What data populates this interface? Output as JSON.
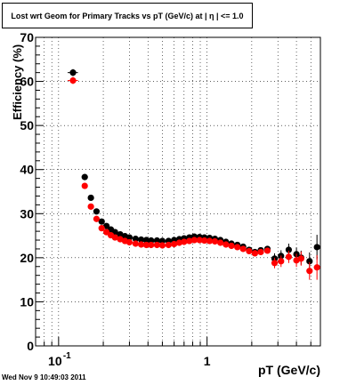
{
  "chart_data": {
    "type": "scatter",
    "title": "Lost wrt Geom for Primary Tracks vs pT (GeV/c) at |  η | <= 1.0",
    "xlabel": "pT (GeV/c)",
    "ylabel": "Efficiency (%)",
    "xscale": "log",
    "xlim": [
      0.07,
      5.8
    ],
    "ylim": [
      0,
      70
    ],
    "grid": true,
    "y_ticks": [
      "0",
      "10",
      "20",
      "30",
      "40",
      "50",
      "60",
      "70"
    ],
    "x_ticks": [
      {
        "base": "10",
        "exp": "-1",
        "value": 0.1
      },
      {
        "base": "1",
        "exp": "",
        "value": 1
      }
    ],
    "series": [
      {
        "color": "#000000",
        "points": [
          {
            "x": 0.125,
            "y": 62.0,
            "xerr": 0.01,
            "yerr": 0.8
          },
          {
            "x": 0.15,
            "y": 38.3,
            "yerr": 0.6
          },
          {
            "x": 0.165,
            "y": 33.6,
            "yerr": 0.5
          },
          {
            "x": 0.18,
            "y": 30.5
          },
          {
            "x": 0.195,
            "y": 28.2
          },
          {
            "x": 0.21,
            "y": 27.2
          },
          {
            "x": 0.225,
            "y": 26.4
          },
          {
            "x": 0.24,
            "y": 25.8
          },
          {
            "x": 0.26,
            "y": 25.3
          },
          {
            "x": 0.28,
            "y": 24.9
          },
          {
            "x": 0.3,
            "y": 24.6
          },
          {
            "x": 0.33,
            "y": 24.3
          },
          {
            "x": 0.36,
            "y": 24.1
          },
          {
            "x": 0.39,
            "y": 24.0
          },
          {
            "x": 0.42,
            "y": 23.9
          },
          {
            "x": 0.46,
            "y": 23.9
          },
          {
            "x": 0.5,
            "y": 23.8
          },
          {
            "x": 0.55,
            "y": 23.8
          },
          {
            "x": 0.6,
            "y": 24.0
          },
          {
            "x": 0.65,
            "y": 24.2
          },
          {
            "x": 0.7,
            "y": 24.4
          },
          {
            "x": 0.76,
            "y": 24.6
          },
          {
            "x": 0.82,
            "y": 24.8
          },
          {
            "x": 0.89,
            "y": 24.7
          },
          {
            "x": 0.96,
            "y": 24.6
          },
          {
            "x": 1.04,
            "y": 24.5
          },
          {
            "x": 1.13,
            "y": 24.3
          },
          {
            "x": 1.23,
            "y": 24.0
          },
          {
            "x": 1.34,
            "y": 23.6
          },
          {
            "x": 1.46,
            "y": 23.2
          },
          {
            "x": 1.6,
            "y": 22.9
          },
          {
            "x": 1.75,
            "y": 22.5
          },
          {
            "x": 1.92,
            "y": 21.8
          },
          {
            "x": 2.1,
            "y": 21.3
          },
          {
            "x": 2.3,
            "y": 21.7
          },
          {
            "x": 2.55,
            "y": 22.0
          },
          {
            "x": 2.85,
            "y": 19.8,
            "yerr": 1.2
          },
          {
            "x": 3.15,
            "y": 20.4,
            "yerr": 1.3
          },
          {
            "x": 3.55,
            "y": 21.8,
            "yerr": 1.4
          },
          {
            "x": 4.0,
            "y": 20.8,
            "yerr": 1.5
          },
          {
            "x": 4.3,
            "y": 20.0,
            "yerr": 1.6
          },
          {
            "x": 4.9,
            "y": 19.2,
            "yerr": 2.0
          },
          {
            "x": 5.5,
            "y": 22.4,
            "yerr": 2.8
          }
        ]
      },
      {
        "color": "#ff0000",
        "points": [
          {
            "x": 0.125,
            "y": 60.2,
            "xerr": 0.01,
            "yerr": 0.8
          },
          {
            "x": 0.15,
            "y": 36.3,
            "yerr": 0.6
          },
          {
            "x": 0.165,
            "y": 31.6,
            "yerr": 0.5
          },
          {
            "x": 0.18,
            "y": 28.8
          },
          {
            "x": 0.195,
            "y": 26.7
          },
          {
            "x": 0.21,
            "y": 25.8
          },
          {
            "x": 0.225,
            "y": 25.1
          },
          {
            "x": 0.24,
            "y": 24.6
          },
          {
            "x": 0.26,
            "y": 24.2
          },
          {
            "x": 0.28,
            "y": 23.8
          },
          {
            "x": 0.3,
            "y": 23.5
          },
          {
            "x": 0.33,
            "y": 23.2
          },
          {
            "x": 0.36,
            "y": 23.0
          },
          {
            "x": 0.39,
            "y": 22.9
          },
          {
            "x": 0.42,
            "y": 22.9
          },
          {
            "x": 0.46,
            "y": 22.9
          },
          {
            "x": 0.5,
            "y": 22.8
          },
          {
            "x": 0.55,
            "y": 22.9
          },
          {
            "x": 0.6,
            "y": 23.1
          },
          {
            "x": 0.65,
            "y": 23.4
          },
          {
            "x": 0.7,
            "y": 23.6
          },
          {
            "x": 0.76,
            "y": 23.8
          },
          {
            "x": 0.82,
            "y": 24.0
          },
          {
            "x": 0.89,
            "y": 24.0
          },
          {
            "x": 0.96,
            "y": 23.9
          },
          {
            "x": 1.04,
            "y": 23.8
          },
          {
            "x": 1.13,
            "y": 23.7
          },
          {
            "x": 1.23,
            "y": 23.4
          },
          {
            "x": 1.34,
            "y": 23.0
          },
          {
            "x": 1.46,
            "y": 22.7
          },
          {
            "x": 1.6,
            "y": 22.4
          },
          {
            "x": 1.75,
            "y": 22.0
          },
          {
            "x": 1.92,
            "y": 21.5
          },
          {
            "x": 2.1,
            "y": 21.0
          },
          {
            "x": 2.3,
            "y": 21.3
          },
          {
            "x": 2.55,
            "y": 21.6
          },
          {
            "x": 2.85,
            "y": 18.8,
            "yerr": 1.2
          },
          {
            "x": 3.15,
            "y": 19.2,
            "yerr": 1.3
          },
          {
            "x": 3.55,
            "y": 20.2,
            "yerr": 1.4
          },
          {
            "x": 4.0,
            "y": 19.4,
            "yerr": 1.5
          },
          {
            "x": 4.3,
            "y": 19.8,
            "yerr": 1.6
          },
          {
            "x": 4.9,
            "y": 17.0,
            "yerr": 2.0
          },
          {
            "x": 5.5,
            "y": 17.8,
            "yerr": 2.8
          }
        ]
      }
    ]
  },
  "footer": {
    "timestamp": "Wed Nov  9 10:49:03 2011"
  }
}
